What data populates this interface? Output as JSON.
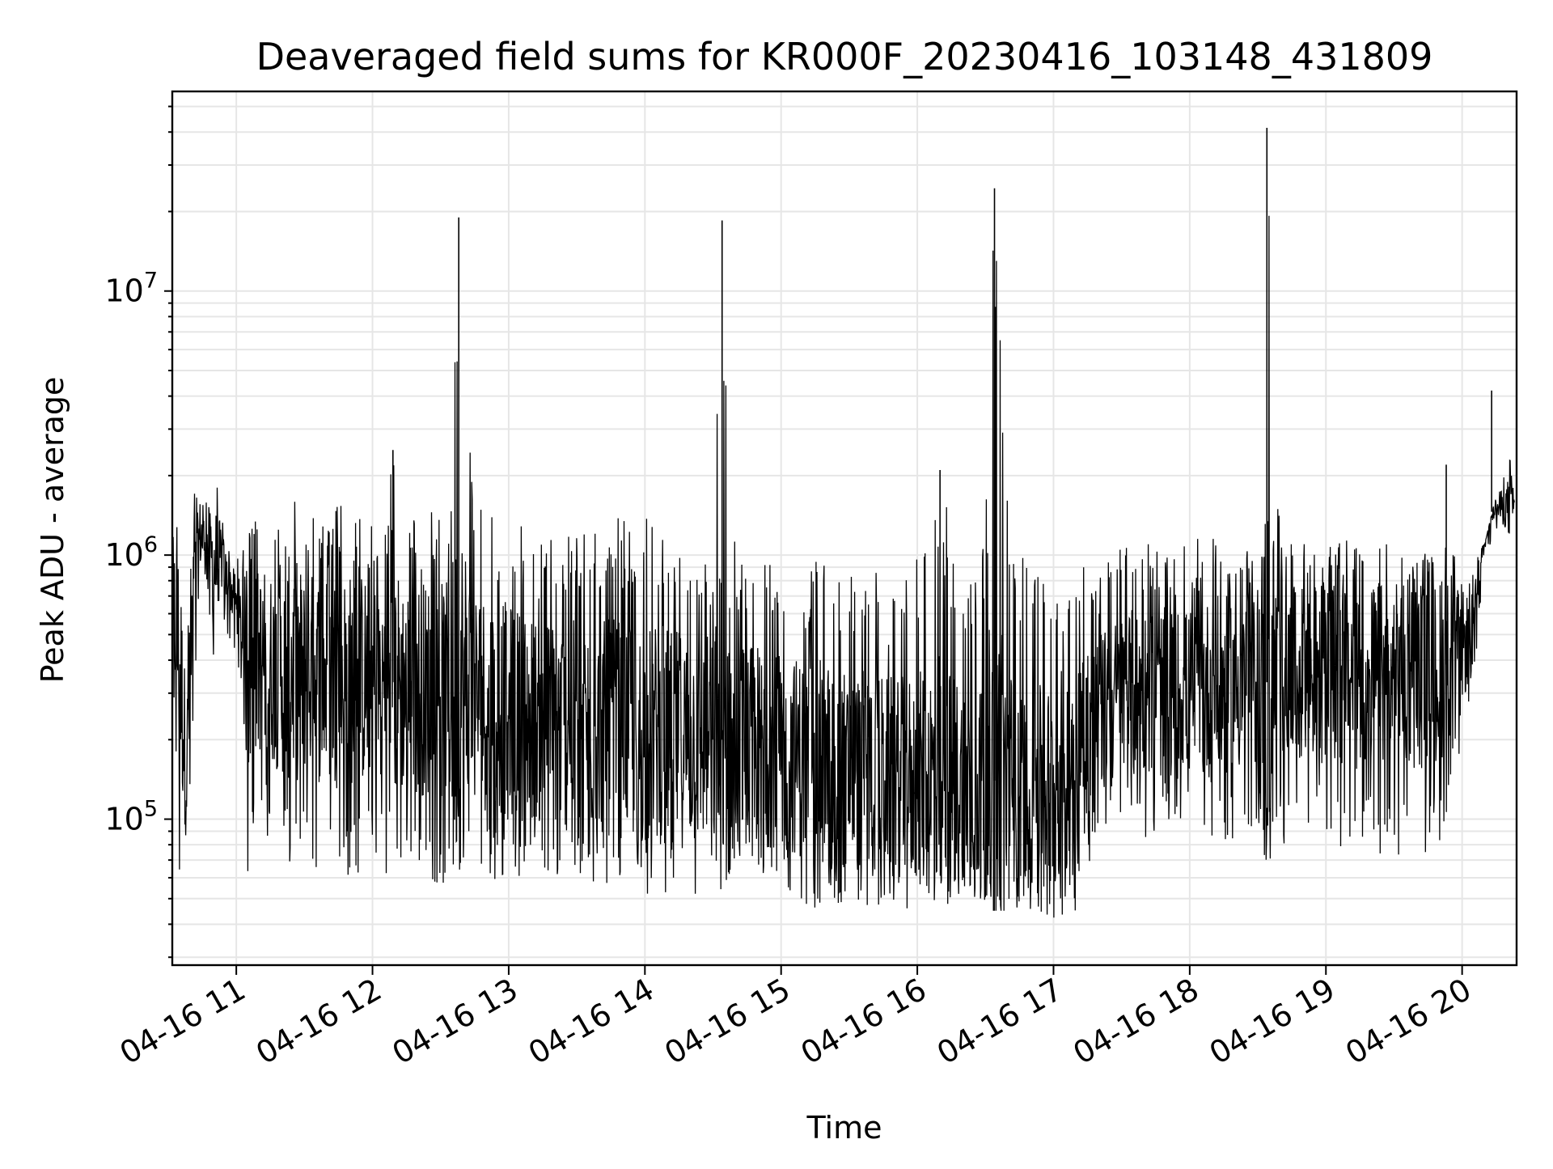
{
  "chart_data": {
    "type": "line",
    "title": "Deaveraged field sums for KR000F_20230416_103148_431809",
    "xlabel": "Time",
    "ylabel": "Peak ADU - average",
    "yscale": "log",
    "grid": true,
    "colors": {
      "line": "#000000",
      "grid": "#e6e6e6",
      "axes": "#000000"
    },
    "xlim": [
      "2023-04-16 10:31:48",
      "2023-04-16 20:24:00"
    ],
    "ylim": [
      28000,
      57000000
    ],
    "x_ticks": [
      "2023-04-16 11:00",
      "2023-04-16 12:00",
      "2023-04-16 13:00",
      "2023-04-16 14:00",
      "2023-04-16 15:00",
      "2023-04-16 16:00",
      "2023-04-16 17:00",
      "2023-04-16 18:00",
      "2023-04-16 19:00",
      "2023-04-16 20:00"
    ],
    "x_tick_labels": [
      "04-16 11",
      "04-16 12",
      "04-16 13",
      "04-16 14",
      "04-16 15",
      "04-16 16",
      "04-16 17",
      "04-16 18",
      "04-16 19",
      "04-16 20"
    ],
    "y_ticks": [
      {
        "value": 100000,
        "base": "10",
        "exp": "5"
      },
      {
        "value": 1000000,
        "base": "10",
        "exp": "6"
      },
      {
        "value": 10000000,
        "base": "10",
        "exp": "7"
      }
    ],
    "series": [
      {
        "x": [
          "2023-04-16 10:32",
          "2023-04-16 10:35",
          "2023-04-16 10:38",
          "2023-04-16 10:41",
          "2023-04-16 10:44",
          "2023-04-16 10:47",
          "2023-04-16 10:50",
          "2023-04-16 10:53",
          "2023-04-16 10:56",
          "2023-04-16 10:59",
          "2023-04-16 11:02",
          "2023-04-16 11:05",
          "2023-04-16 11:10",
          "2023-04-16 11:15",
          "2023-04-16 11:20",
          "2023-04-16 11:25",
          "2023-04-16 11:30",
          "2023-04-16 11:35",
          "2023-04-16 11:40",
          "2023-04-16 11:45",
          "2023-04-16 11:50",
          "2023-04-16 11:55",
          "2023-04-16 12:00",
          "2023-04-16 12:05",
          "2023-04-16 12:09",
          "2023-04-16 12:15",
          "2023-04-16 12:20",
          "2023-04-16 12:25",
          "2023-04-16 12:30",
          "2023-04-16 12:34",
          "2023-04-16 12:38",
          "2023-04-16 12:45",
          "2023-04-16 12:50",
          "2023-04-16 12:55",
          "2023-04-16 13:00",
          "2023-04-16 13:10",
          "2023-04-16 13:20",
          "2023-04-16 13:30",
          "2023-04-16 13:40",
          "2023-04-16 13:50",
          "2023-04-16 14:00",
          "2023-04-16 14:10",
          "2023-04-16 14:20",
          "2023-04-16 14:30",
          "2023-04-16 14:34",
          "2023-04-16 14:40",
          "2023-04-16 14:50",
          "2023-04-16 15:00",
          "2023-04-16 15:10",
          "2023-04-16 15:20",
          "2023-04-16 15:30",
          "2023-04-16 15:40",
          "2023-04-16 15:50",
          "2023-04-16 16:00",
          "2023-04-16 16:10",
          "2023-04-16 16:20",
          "2023-04-16 16:30",
          "2023-04-16 16:34",
          "2023-04-16 16:40",
          "2023-04-16 16:50",
          "2023-04-16 17:00",
          "2023-04-16 17:10",
          "2023-04-16 17:20",
          "2023-04-16 17:30",
          "2023-04-16 17:40",
          "2023-04-16 17:50",
          "2023-04-16 18:00",
          "2023-04-16 18:10",
          "2023-04-16 18:20",
          "2023-04-16 18:30",
          "2023-04-16 18:34",
          "2023-04-16 18:40",
          "2023-04-16 18:50",
          "2023-04-16 19:00",
          "2023-04-16 19:10",
          "2023-04-16 19:20",
          "2023-04-16 19:30",
          "2023-04-16 19:40",
          "2023-04-16 19:50",
          "2023-04-16 20:00",
          "2023-04-16 20:05",
          "2023-04-16 20:10",
          "2023-04-16 20:15",
          "2023-04-16 20:20",
          "2023-04-16 20:23"
        ],
        "hi": [
          1600000,
          1500000,
          450000,
          1900000,
          1700000,
          1600000,
          2400000,
          1700000,
          1100000,
          1000000,
          1000000,
          1300000,
          1400000,
          1400000,
          1300000,
          2000000,
          1400000,
          1500000,
          1400000,
          1600000,
          1400000,
          1400000,
          1300000,
          1300000,
          2500000,
          1400000,
          1400000,
          1500000,
          1500000,
          1500000,
          19000000,
          1500000,
          1500000,
          1300000,
          1400000,
          1200000,
          1200000,
          1300000,
          1300000,
          1400000,
          1400000,
          1200000,
          1300000,
          1100000,
          18500000,
          1100000,
          1000000,
          900000,
          900000,
          1000000,
          900000,
          900000,
          800000,
          1000000,
          2100000,
          900000,
          1200000,
          24500000,
          1700000,
          900000,
          900000,
          900000,
          900000,
          1100000,
          1100000,
          1100000,
          1100000,
          1300000,
          1100000,
          1100000,
          41500000,
          1100000,
          1100000,
          1100000,
          1200000,
          1100000,
          1100000,
          1000000,
          1100000,
          1000000,
          1000000,
          1100000,
          1700000,
          2500000,
          3000000
        ],
        "lo": [
          280000,
          50000,
          60000,
          200000,
          600000,
          800000,
          350000,
          650000,
          500000,
          450000,
          200000,
          60000,
          90000,
          85000,
          70000,
          60000,
          75000,
          65000,
          60000,
          60000,
          60000,
          60000,
          60000,
          60000,
          70000,
          65000,
          60000,
          60000,
          55000,
          60000,
          65000,
          55000,
          60000,
          55000,
          60000,
          55000,
          55000,
          55000,
          55000,
          55000,
          50000,
          50000,
          50000,
          50000,
          55000,
          55000,
          50000,
          55000,
          45000,
          45000,
          45000,
          45000,
          45000,
          45000,
          45000,
          50000,
          45000,
          45000,
          45000,
          45000,
          40000,
          45000,
          90000,
          80000,
          85000,
          90000,
          90000,
          85000,
          80000,
          90000,
          60000,
          80000,
          80000,
          85000,
          70000,
          70000,
          70000,
          70000,
          70000,
          200000,
          300000,
          1000000,
          1200000,
          1200000,
          1200000
        ],
        "mid": [
          700000,
          400000,
          150000,
          600000,
          1200000,
          1100000,
          900000,
          1000000,
          800000,
          700000,
          500000,
          350000,
          400000,
          380000,
          350000,
          380000,
          350000,
          350000,
          340000,
          350000,
          340000,
          340000,
          330000,
          320000,
          330000,
          320000,
          320000,
          310000,
          300000,
          300000,
          310000,
          290000,
          280000,
          270000,
          260000,
          240000,
          230000,
          220000,
          220000,
          220000,
          210000,
          210000,
          200000,
          200000,
          200000,
          195000,
          190000,
          180000,
          170000,
          160000,
          150000,
          150000,
          145000,
          140000,
          140000,
          140000,
          135000,
          140000,
          130000,
          130000,
          130000,
          200000,
          250000,
          280000,
          300000,
          300000,
          300000,
          310000,
          320000,
          330000,
          330000,
          340000,
          350000,
          350000,
          350000,
          350000,
          350000,
          340000,
          360000,
          450000,
          500000,
          1400000,
          1500000,
          1550000,
          1600000
        ]
      }
    ],
    "spikes": [
      {
        "x": "2023-04-16 12:09",
        "y": 2500000
      },
      {
        "x": "2023-04-16 12:38",
        "y": 19000000
      },
      {
        "x": "2023-04-16 14:34",
        "y": 18500000
      },
      {
        "x": "2023-04-16 16:10",
        "y": 2100000
      },
      {
        "x": "2023-04-16 16:34",
        "y": 24500000
      },
      {
        "x": "2023-04-16 18:34",
        "y": 41500000
      },
      {
        "x": "2023-04-16 19:53",
        "y": 2200000
      },
      {
        "x": "2023-04-16 20:13",
        "y": 4200000
      }
    ]
  }
}
